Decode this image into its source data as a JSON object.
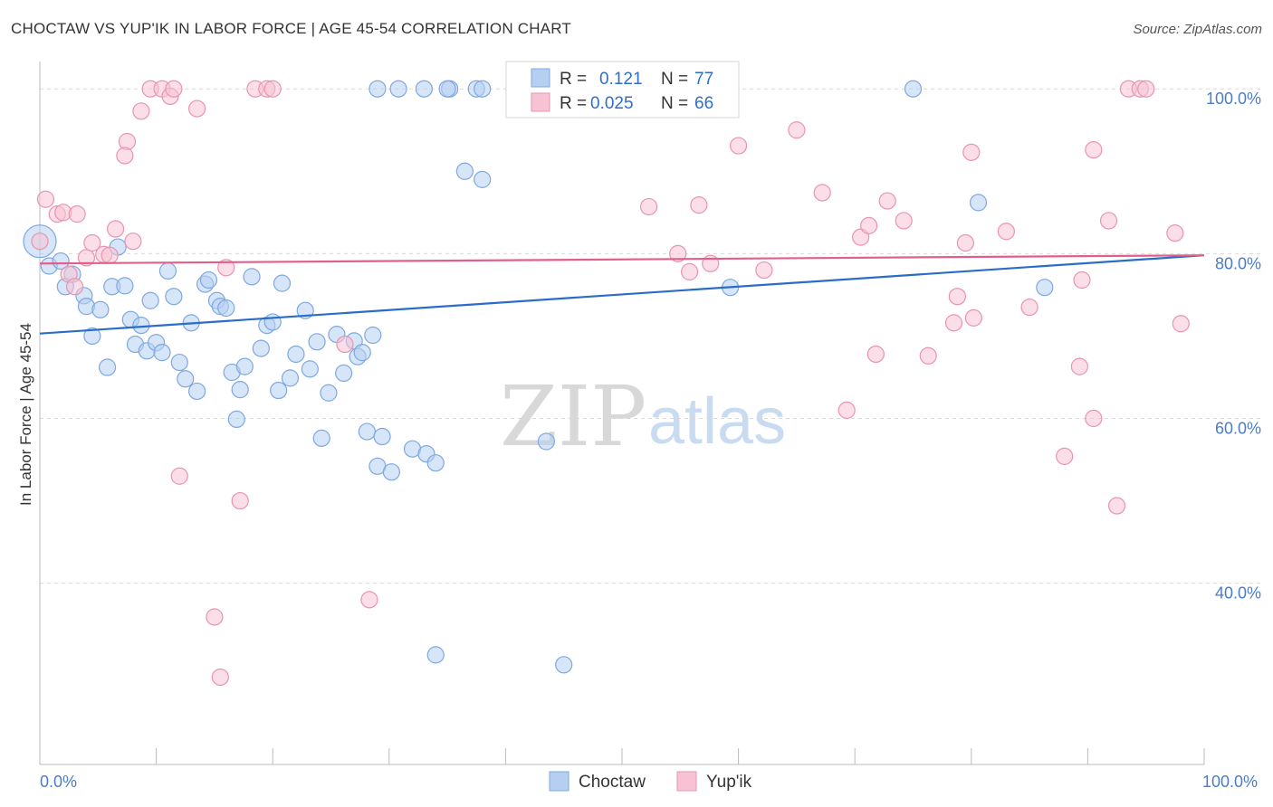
{
  "title": "CHOCTAW VS YUP'IK IN LABOR FORCE | AGE 45-54 CORRELATION CHART",
  "source": "Source: ZipAtlas.com",
  "watermark": {
    "zip": "ZIP",
    "atlas": "atlas"
  },
  "colors": {
    "choctaw_fill": "#b5cff2",
    "choctaw_stroke": "#7ea8e0",
    "choctaw_line": "#2a6dc9",
    "yupik_fill": "#f7c3d4",
    "yupik_stroke": "#e894b0",
    "yupik_line": "#e0608c",
    "grid": "#d9d9d9",
    "tick_text": "#4a7cc9"
  },
  "legend": {
    "rows": [
      {
        "r_label": "R =",
        "r_value": "0.121",
        "n_label": "N =",
        "n_value": "77"
      },
      {
        "r_label": "R =",
        "r_value": "0.025",
        "n_label": "N =",
        "n_value": "66"
      }
    ]
  },
  "bottom_legend": [
    "Choctaw",
    "Yup'ik"
  ],
  "chart_data": {
    "type": "scatter",
    "title": "CHOCTAW VS YUP'IK IN LABOR FORCE | AGE 45-54 CORRELATION CHART",
    "xlabel": "",
    "ylabel": "In Labor Force | Age 45-54",
    "xlim": [
      0,
      100
    ],
    "ylim": [
      18,
      102
    ],
    "x_tick_labels": [
      "0.0%",
      "100.0%"
    ],
    "y_ticks": [
      40,
      60,
      80,
      100
    ],
    "y_tick_labels": [
      "40.0%",
      "60.0%",
      "80.0%",
      "100.0%"
    ],
    "grid": true,
    "legend_position": "top-center",
    "series": [
      {
        "name": "Choctaw",
        "R": 0.121,
        "N": 77,
        "trend": {
          "x": [
            0,
            100
          ],
          "y": [
            70.3,
            79.8
          ]
        },
        "points": [
          [
            0.0,
            81.5
          ],
          [
            0.8,
            78.5
          ],
          [
            1.8,
            79.1
          ],
          [
            2.2,
            76.0
          ],
          [
            2.8,
            77.5
          ],
          [
            3.8,
            74.9
          ],
          [
            4.0,
            73.6
          ],
          [
            4.5,
            70.0
          ],
          [
            5.2,
            73.2
          ],
          [
            5.8,
            66.2
          ],
          [
            6.2,
            76.0
          ],
          [
            6.7,
            80.8
          ],
          [
            7.3,
            76.1
          ],
          [
            7.8,
            72.0
          ],
          [
            8.2,
            69.0
          ],
          [
            8.7,
            71.3
          ],
          [
            9.2,
            68.2
          ],
          [
            9.5,
            74.3
          ],
          [
            10.0,
            69.2
          ],
          [
            10.5,
            68.0
          ],
          [
            11.0,
            77.9
          ],
          [
            11.5,
            74.8
          ],
          [
            12.0,
            66.8
          ],
          [
            12.5,
            64.8
          ],
          [
            13.0,
            71.6
          ],
          [
            13.5,
            63.3
          ],
          [
            14.2,
            76.3
          ],
          [
            14.5,
            76.8
          ],
          [
            15.2,
            74.3
          ],
          [
            15.5,
            73.6
          ],
          [
            16.0,
            73.4
          ],
          [
            16.5,
            65.6
          ],
          [
            16.9,
            59.9
          ],
          [
            17.2,
            63.5
          ],
          [
            17.6,
            66.3
          ],
          [
            18.2,
            77.2
          ],
          [
            19.0,
            68.5
          ],
          [
            19.5,
            71.3
          ],
          [
            20.0,
            71.7
          ],
          [
            20.5,
            63.4
          ],
          [
            20.8,
            76.4
          ],
          [
            21.5,
            64.9
          ],
          [
            22.0,
            67.8
          ],
          [
            22.8,
            73.1
          ],
          [
            23.2,
            66.0
          ],
          [
            23.8,
            69.3
          ],
          [
            24.2,
            57.6
          ],
          [
            24.8,
            63.1
          ],
          [
            25.5,
            70.2
          ],
          [
            26.1,
            65.5
          ],
          [
            27.0,
            69.4
          ],
          [
            27.3,
            67.5
          ],
          [
            27.7,
            68.0
          ],
          [
            28.1,
            58.4
          ],
          [
            28.6,
            70.1
          ],
          [
            29.0,
            54.2
          ],
          [
            29.4,
            57.8
          ],
          [
            30.2,
            53.5
          ],
          [
            32.0,
            56.3
          ],
          [
            33.2,
            55.7
          ],
          [
            34.0,
            54.6
          ],
          [
            29.0,
            100.0
          ],
          [
            30.8,
            100.0
          ],
          [
            33.0,
            100.0
          ],
          [
            35.2,
            100.0
          ],
          [
            35.0,
            100.0
          ],
          [
            37.5,
            100.0
          ],
          [
            36.5,
            90.0
          ],
          [
            38.0,
            89.0
          ],
          [
            43.5,
            57.2
          ],
          [
            45.0,
            30.1
          ],
          [
            59.3,
            75.9
          ],
          [
            75.0,
            100.0
          ],
          [
            80.6,
            86.2
          ],
          [
            86.3,
            75.9
          ],
          [
            34.0,
            31.3
          ],
          [
            38.0,
            100.0
          ]
        ]
      },
      {
        "name": "Yup'ik",
        "R": 0.025,
        "N": 66,
        "trend": {
          "x": [
            0,
            100
          ],
          "y": [
            78.8,
            79.8
          ]
        },
        "points": [
          [
            0.0,
            81.5
          ],
          [
            0.5,
            86.6
          ],
          [
            1.5,
            84.8
          ],
          [
            2.0,
            85.0
          ],
          [
            2.5,
            77.5
          ],
          [
            3.0,
            76.0
          ],
          [
            3.2,
            84.8
          ],
          [
            4.0,
            79.5
          ],
          [
            4.5,
            81.3
          ],
          [
            5.5,
            79.9
          ],
          [
            6.0,
            79.8
          ],
          [
            6.5,
            83.0
          ],
          [
            7.5,
            93.6
          ],
          [
            7.3,
            91.9
          ],
          [
            8.0,
            81.5
          ],
          [
            8.7,
            97.3
          ],
          [
            9.5,
            100.0
          ],
          [
            10.5,
            100.0
          ],
          [
            11.2,
            99.1
          ],
          [
            11.5,
            100.0
          ],
          [
            12.0,
            53.0
          ],
          [
            13.5,
            97.6
          ],
          [
            15.0,
            35.9
          ],
          [
            15.5,
            28.6
          ],
          [
            16.0,
            78.3
          ],
          [
            17.2,
            50.0
          ],
          [
            18.5,
            100.0
          ],
          [
            19.5,
            100.0
          ],
          [
            20.0,
            100.0
          ],
          [
            26.2,
            69.0
          ],
          [
            28.3,
            38.0
          ],
          [
            52.3,
            85.7
          ],
          [
            54.8,
            80.0
          ],
          [
            55.8,
            77.8
          ],
          [
            56.6,
            85.9
          ],
          [
            57.6,
            78.8
          ],
          [
            60.0,
            93.1
          ],
          [
            62.2,
            78.0
          ],
          [
            65.0,
            95.0
          ],
          [
            67.2,
            87.4
          ],
          [
            69.3,
            61.0
          ],
          [
            70.5,
            82.0
          ],
          [
            71.2,
            83.4
          ],
          [
            71.8,
            67.8
          ],
          [
            72.8,
            86.4
          ],
          [
            74.2,
            84.0
          ],
          [
            76.3,
            67.6
          ],
          [
            78.5,
            71.6
          ],
          [
            78.8,
            74.8
          ],
          [
            79.5,
            81.3
          ],
          [
            80.0,
            92.3
          ],
          [
            80.2,
            72.2
          ],
          [
            83.0,
            82.7
          ],
          [
            85.0,
            73.5
          ],
          [
            88.0,
            55.4
          ],
          [
            89.5,
            76.8
          ],
          [
            89.3,
            66.3
          ],
          [
            90.5,
            92.6
          ],
          [
            90.5,
            60.0
          ],
          [
            91.8,
            84.0
          ],
          [
            92.5,
            49.4
          ],
          [
            93.5,
            100.0
          ],
          [
            94.5,
            100.0
          ],
          [
            95.0,
            100.0
          ],
          [
            97.5,
            82.5
          ],
          [
            98.0,
            71.5
          ]
        ]
      }
    ]
  }
}
